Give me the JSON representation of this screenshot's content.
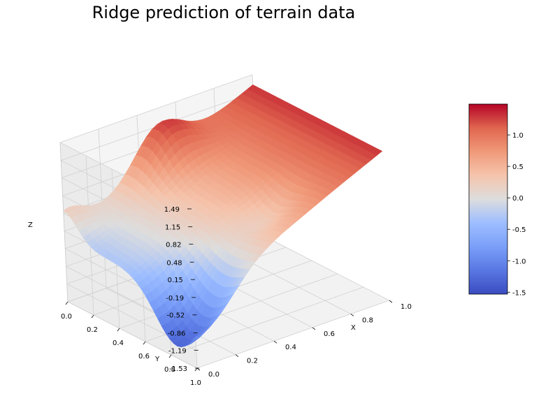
{
  "chart_data": {
    "type": "surface",
    "title": "Ridge prediction of terrain data",
    "xlabel": "X",
    "ylabel": "Y",
    "zlabel": "Z",
    "x_ticks": [
      "0.0",
      "0.2",
      "0.4",
      "0.6",
      "0.8",
      "1.0"
    ],
    "y_ticks": [
      "0.0",
      "0.2",
      "0.4",
      "0.6",
      "0.8",
      "1.0"
    ],
    "z_ticks": [
      "-1.53",
      "-1.19",
      "-0.86",
      "-0.52",
      "-0.19",
      "0.15",
      "0.48",
      "0.82",
      "1.15",
      "1.49"
    ],
    "xlim": [
      0,
      1
    ],
    "ylim": [
      0,
      1
    ],
    "zlim": [
      -1.53,
      1.49
    ],
    "colormap": "coolwarm",
    "colorbar": {
      "ticks": [
        "-1.5",
        "-1.0",
        "-0.5",
        "0.0",
        "0.5",
        "1.0"
      ],
      "range": [
        -1.53,
        1.49
      ],
      "placement": "right"
    },
    "grid": true
  }
}
